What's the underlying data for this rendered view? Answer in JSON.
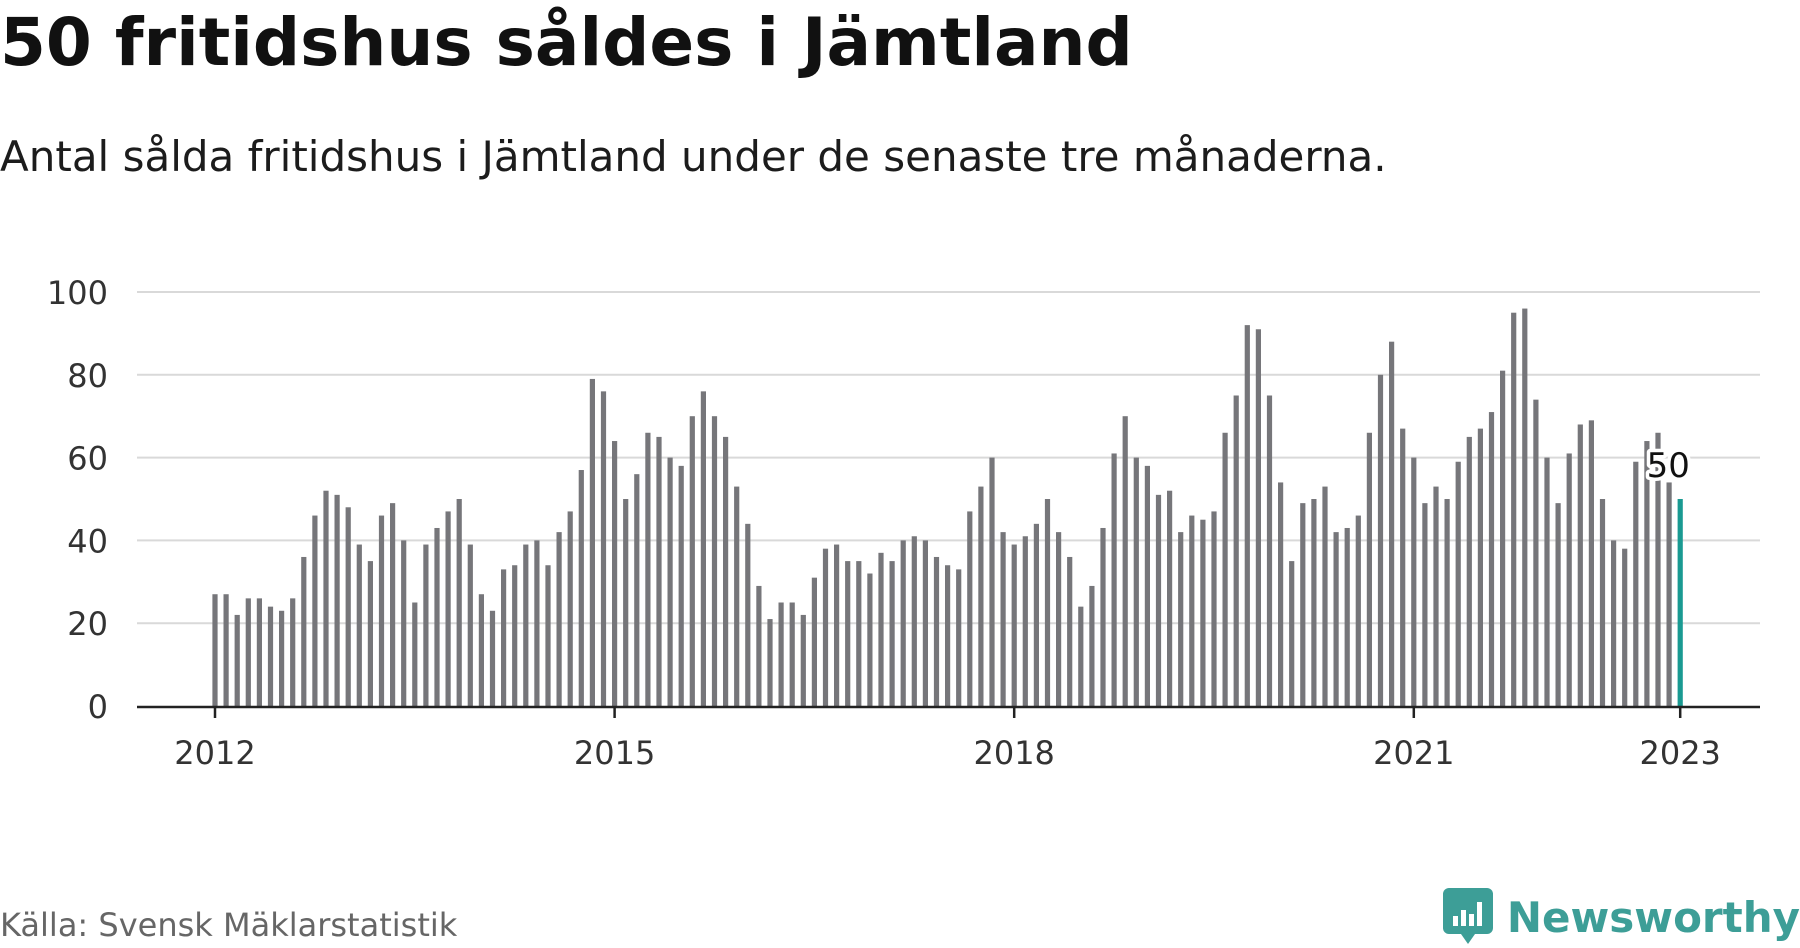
{
  "header": {
    "title": "50 fritidshus såldes i Jämtland",
    "subtitle": "Antal sålda fritidshus i Jämtland under de senaste tre månaderna."
  },
  "footer": {
    "source": "Källa: Svensk Mäklarstatistik",
    "brand": "Newsworthy",
    "brand_icon": "newsworthy-logo-icon"
  },
  "colors": {
    "bar": "#76767a",
    "highlight": "#1a9a92",
    "grid": "#d9d9d9",
    "axis": "#222222",
    "brand": "#3d9e97"
  },
  "chart_data": {
    "type": "bar",
    "start": "2012-01",
    "x_ticks": [
      "2012",
      "2015",
      "2018",
      "2021",
      "2023"
    ],
    "y_ticks": [
      0,
      20,
      40,
      60,
      80,
      100
    ],
    "ylim": [
      0,
      100
    ],
    "grid": true,
    "highlight_last": true,
    "last_value_label": "50",
    "values": [
      27,
      27,
      22,
      26,
      26,
      24,
      23,
      26,
      36,
      46,
      52,
      51,
      48,
      39,
      35,
      46,
      49,
      40,
      25,
      39,
      43,
      47,
      50,
      39,
      27,
      23,
      33,
      34,
      39,
      40,
      34,
      42,
      47,
      57,
      79,
      76,
      64,
      50,
      56,
      66,
      65,
      60,
      58,
      70,
      76,
      70,
      65,
      53,
      44,
      29,
      21,
      25,
      25,
      22,
      31,
      38,
      39,
      35,
      35,
      32,
      37,
      35,
      40,
      41,
      40,
      36,
      34,
      33,
      47,
      53,
      60,
      42,
      39,
      41,
      44,
      50,
      42,
      36,
      24,
      29,
      43,
      61,
      70,
      60,
      58,
      51,
      52,
      42,
      46,
      45,
      47,
      66,
      75,
      92,
      91,
      75,
      54,
      35,
      49,
      50,
      53,
      42,
      43,
      46,
      66,
      80,
      88,
      67,
      60,
      49,
      53,
      50,
      59,
      65,
      67,
      71,
      81,
      95,
      96,
      74,
      60,
      49,
      61,
      68,
      69,
      50,
      40,
      38,
      59,
      64,
      66,
      54,
      50
    ]
  }
}
